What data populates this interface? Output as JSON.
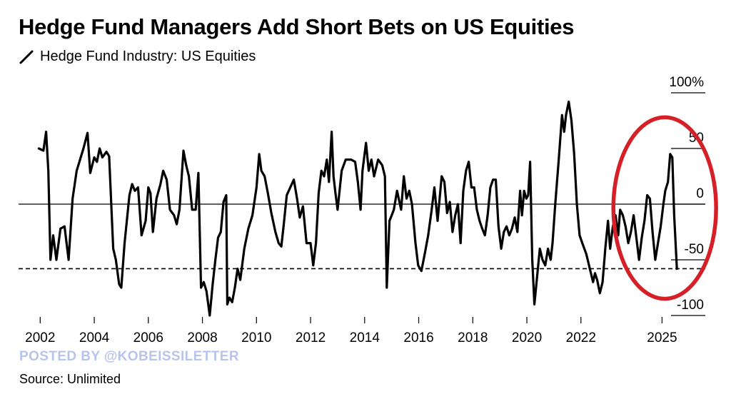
{
  "title": "Hedge Fund Managers Add Short Bets on US Equities",
  "watermark": "POSTED BY @KOBEISSILETTER",
  "source": "Source: Unlimited",
  "chart_data": {
    "type": "line",
    "series": [
      {
        "name": "Hedge Fund Industry: US Equities",
        "color": "#000000",
        "points": [
          [
            2001.95,
            50
          ],
          [
            2002.12,
            48
          ],
          [
            2002.22,
            65
          ],
          [
            2002.3,
            30
          ],
          [
            2002.38,
            -50
          ],
          [
            2002.48,
            -28
          ],
          [
            2002.6,
            -50
          ],
          [
            2002.75,
            -22
          ],
          [
            2002.9,
            -20
          ],
          [
            2003.05,
            -50
          ],
          [
            2003.2,
            5
          ],
          [
            2003.35,
            30
          ],
          [
            2003.6,
            50
          ],
          [
            2003.75,
            64
          ],
          [
            2003.85,
            28
          ],
          [
            2004.0,
            42
          ],
          [
            2004.1,
            38
          ],
          [
            2004.2,
            50
          ],
          [
            2004.3,
            42
          ],
          [
            2004.45,
            47
          ],
          [
            2004.55,
            43
          ],
          [
            2004.7,
            -40
          ],
          [
            2004.8,
            -50
          ],
          [
            2004.92,
            -72
          ],
          [
            2005.0,
            -75
          ],
          [
            2005.12,
            -35
          ],
          [
            2005.3,
            8
          ],
          [
            2005.4,
            18
          ],
          [
            2005.5,
            12
          ],
          [
            2005.62,
            15
          ],
          [
            2005.75,
            -28
          ],
          [
            2005.9,
            -15
          ],
          [
            2006.0,
            15
          ],
          [
            2006.08,
            10
          ],
          [
            2006.17,
            -25
          ],
          [
            2006.3,
            5
          ],
          [
            2006.45,
            18
          ],
          [
            2006.55,
            30
          ],
          [
            2006.68,
            22
          ],
          [
            2006.8,
            -5
          ],
          [
            2006.95,
            -10
          ],
          [
            2007.05,
            -18
          ],
          [
            2007.15,
            -5
          ],
          [
            2007.3,
            48
          ],
          [
            2007.4,
            35
          ],
          [
            2007.5,
            25
          ],
          [
            2007.62,
            -5
          ],
          [
            2007.75,
            -5
          ],
          [
            2007.85,
            28
          ],
          [
            2007.95,
            -75
          ],
          [
            2008.05,
            -70
          ],
          [
            2008.15,
            -78
          ],
          [
            2008.27,
            -100
          ],
          [
            2008.38,
            -72
          ],
          [
            2008.48,
            -50
          ],
          [
            2008.58,
            -30
          ],
          [
            2008.68,
            -25
          ],
          [
            2008.78,
            2
          ],
          [
            2008.88,
            8
          ],
          [
            2008.92,
            -90
          ],
          [
            2009.0,
            -84
          ],
          [
            2009.1,
            -88
          ],
          [
            2009.2,
            -75
          ],
          [
            2009.3,
            -58
          ],
          [
            2009.4,
            -68
          ],
          [
            2009.55,
            -40
          ],
          [
            2009.7,
            -22
          ],
          [
            2009.85,
            -10
          ],
          [
            2010.0,
            15
          ],
          [
            2010.1,
            45
          ],
          [
            2010.18,
            30
          ],
          [
            2010.3,
            25
          ],
          [
            2010.42,
            10
          ],
          [
            2010.55,
            -8
          ],
          [
            2010.7,
            -25
          ],
          [
            2010.82,
            -35
          ],
          [
            2010.92,
            -38
          ],
          [
            2011.0,
            -20
          ],
          [
            2011.12,
            8
          ],
          [
            2011.25,
            15
          ],
          [
            2011.38,
            22
          ],
          [
            2011.5,
            5
          ],
          [
            2011.6,
            -12
          ],
          [
            2011.72,
            -2
          ],
          [
            2011.85,
            -35
          ],
          [
            2012.0,
            -35
          ],
          [
            2012.1,
            -55
          ],
          [
            2012.2,
            -35
          ],
          [
            2012.3,
            10
          ],
          [
            2012.4,
            30
          ],
          [
            2012.5,
            25
          ],
          [
            2012.6,
            40
          ],
          [
            2012.68,
            20
          ],
          [
            2012.78,
            65
          ],
          [
            2012.85,
            25
          ],
          [
            2012.92,
            10
          ],
          [
            2013.0,
            -5
          ],
          [
            2013.15,
            30
          ],
          [
            2013.3,
            40
          ],
          [
            2013.5,
            40
          ],
          [
            2013.65,
            38
          ],
          [
            2013.75,
            20
          ],
          [
            2013.85,
            -5
          ],
          [
            2013.92,
            30
          ],
          [
            2014.05,
            55
          ],
          [
            2014.15,
            30
          ],
          [
            2014.25,
            40
          ],
          [
            2014.35,
            25
          ],
          [
            2014.5,
            40
          ],
          [
            2014.65,
            35
          ],
          [
            2014.75,
            25
          ],
          [
            2014.82,
            -75
          ],
          [
            2014.92,
            -15
          ],
          [
            2015.0,
            -10
          ],
          [
            2015.08,
            -5
          ],
          [
            2015.2,
            12
          ],
          [
            2015.35,
            -5
          ],
          [
            2015.45,
            25
          ],
          [
            2015.55,
            5
          ],
          [
            2015.65,
            12
          ],
          [
            2015.75,
            0
          ],
          [
            2015.88,
            -35
          ],
          [
            2015.98,
            -55
          ],
          [
            2016.1,
            -60
          ],
          [
            2016.22,
            -45
          ],
          [
            2016.35,
            -28
          ],
          [
            2016.48,
            -5
          ],
          [
            2016.58,
            15
          ],
          [
            2016.7,
            -15
          ],
          [
            2016.85,
            25
          ],
          [
            2016.95,
            20
          ],
          [
            2017.05,
            -8
          ],
          [
            2017.15,
            2
          ],
          [
            2017.25,
            -25
          ],
          [
            2017.35,
            -10
          ],
          [
            2017.45,
            0
          ],
          [
            2017.55,
            -35
          ],
          [
            2017.65,
            12
          ],
          [
            2017.75,
            30
          ],
          [
            2017.85,
            38
          ],
          [
            2017.95,
            15
          ],
          [
            2018.05,
            15
          ],
          [
            2018.15,
            -5
          ],
          [
            2018.25,
            -15
          ],
          [
            2018.35,
            -22
          ],
          [
            2018.45,
            -28
          ],
          [
            2018.55,
            -10
          ],
          [
            2018.65,
            15
          ],
          [
            2018.75,
            22
          ],
          [
            2018.85,
            22
          ],
          [
            2018.95,
            -20
          ],
          [
            2019.05,
            -40
          ],
          [
            2019.15,
            -25
          ],
          [
            2019.25,
            -20
          ],
          [
            2019.35,
            -28
          ],
          [
            2019.45,
            -22
          ],
          [
            2019.55,
            -12
          ],
          [
            2019.65,
            -25
          ],
          [
            2019.75,
            12
          ],
          [
            2019.82,
            -10
          ],
          [
            2019.9,
            12
          ],
          [
            2019.98,
            5
          ],
          [
            2020.05,
            8
          ],
          [
            2020.12,
            38
          ],
          [
            2020.2,
            -50
          ],
          [
            2020.28,
            -90
          ],
          [
            2020.38,
            -65
          ],
          [
            2020.48,
            -40
          ],
          [
            2020.58,
            -50
          ],
          [
            2020.68,
            -55
          ],
          [
            2020.78,
            -40
          ],
          [
            2020.88,
            -50
          ],
          [
            2020.95,
            -35
          ],
          [
            2021.05,
            0
          ],
          [
            2021.18,
            40
          ],
          [
            2021.3,
            80
          ],
          [
            2021.38,
            65
          ],
          [
            2021.45,
            80
          ],
          [
            2021.55,
            92
          ],
          [
            2021.65,
            75
          ],
          [
            2021.75,
            45
          ],
          [
            2021.85,
            0
          ],
          [
            2021.95,
            -28
          ],
          [
            2022.05,
            -35
          ],
          [
            2022.2,
            -45
          ],
          [
            2022.35,
            -60
          ],
          [
            2022.45,
            -70
          ],
          [
            2022.52,
            -62
          ],
          [
            2022.6,
            -68
          ],
          [
            2022.7,
            -80
          ],
          [
            2022.8,
            -70
          ],
          [
            2022.9,
            -40
          ],
          [
            2023.0,
            -15
          ],
          [
            2023.08,
            -40
          ],
          [
            2023.18,
            -20
          ],
          [
            2023.28,
            -10
          ],
          [
            2023.38,
            -28
          ],
          [
            2023.45,
            -5
          ],
          [
            2023.55,
            -10
          ],
          [
            2023.65,
            -20
          ],
          [
            2023.75,
            -35
          ],
          [
            2023.85,
            -25
          ],
          [
            2023.95,
            -10
          ],
          [
            2024.05,
            -30
          ],
          [
            2024.15,
            -50
          ],
          [
            2024.25,
            -30
          ],
          [
            2024.35,
            -15
          ],
          [
            2024.45,
            8
          ],
          [
            2024.55,
            5
          ],
          [
            2024.65,
            -25
          ],
          [
            2024.75,
            -50
          ],
          [
            2024.85,
            -35
          ],
          [
            2024.95,
            -20
          ],
          [
            2025.05,
            0
          ],
          [
            2025.12,
            12
          ],
          [
            2025.22,
            20
          ],
          [
            2025.3,
            45
          ],
          [
            2025.38,
            42
          ],
          [
            2025.45,
            -10
          ],
          [
            2025.55,
            -58
          ]
        ]
      }
    ],
    "x_ticks": [
      2002,
      2004,
      2006,
      2008,
      2010,
      2012,
      2014,
      2016,
      2018,
      2020,
      2022,
      2025
    ],
    "xlim": [
      2001.2,
      2026.6
    ],
    "y_ticks": [
      100,
      50,
      0,
      -50,
      -100
    ],
    "y_tick_labels": [
      "100%",
      "50",
      "0",
      "-50",
      "-100"
    ],
    "ylim": [
      -100,
      100
    ],
    "zero_line": 0,
    "reference_line": {
      "y": -58,
      "style": "dashed"
    },
    "highlight": {
      "shape": "ellipse",
      "color": "#d62027",
      "x_range": [
        2023.2,
        2027.0
      ],
      "y_range": [
        -85,
        78
      ]
    },
    "grid": false,
    "y_axis_side": "right"
  }
}
